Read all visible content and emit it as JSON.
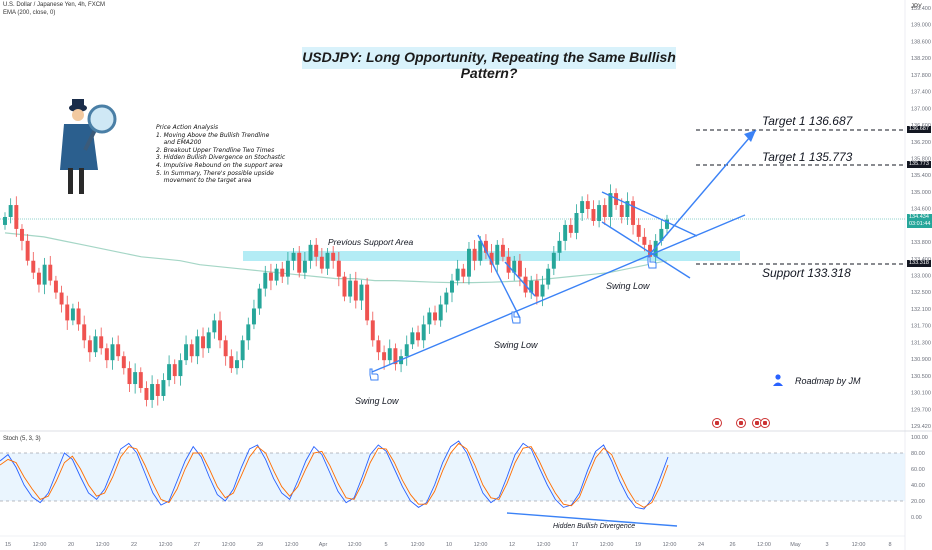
{
  "header": {
    "symbol_line": "U.S. Dollar / Japanese Yen, 4h, FXCM",
    "indicator_line": "EMA (200, close, 0)",
    "currency": "JPY"
  },
  "title": "USDJPY: Long Opportunity, Repeating the Same Bullish Pattern?",
  "analysis": {
    "heading": "Price Action Analysis",
    "lines": [
      "1. Moving Above the Bullish Trendline",
      "    and EMA200",
      "2. Breakout Upper Trendline Two Times",
      "3. Hidden Bullish Divergence on Stochastic",
      "4. Impulsive Rebound on the support area",
      "5. In Summary, There's possible upside",
      "    movement to the target area"
    ]
  },
  "annotations": {
    "target1": "Target 1  136.687",
    "target2": "Target 1  135.773",
    "support": "Support 133.318",
    "support_area": "Previous Support Area",
    "swing_low_1": "Swing Low",
    "swing_low_2": "Swing Low",
    "swing_low_3": "Swing Low",
    "roadmap": "Roadmap by JM",
    "divergence": "Hidden Bullish Divergence",
    "stoch_label": "Stoch (5, 3, 3)"
  },
  "price_badges": {
    "target1": "136.687",
    "target2": "135.773",
    "current": "134.434",
    "countdown": "03:01:44",
    "support": "133.318"
  },
  "colors": {
    "up": "#26a69a",
    "down": "#ef5350",
    "ema": "#a5d6c6",
    "trendline": "#3b82f6",
    "support_zone": "#b3ecf5",
    "stoch_k": "#2962ff",
    "stoch_d": "#ff6d00"
  },
  "chart_data": [
    {
      "type": "candlestick",
      "title": "U.S. Dollar / Japanese Yen, 4h, FXCM",
      "ylabel": "JPY",
      "ylim": [
        129.42,
        139.4
      ],
      "y_ticks": [
        "139.400",
        "139.000",
        "138.600",
        "138.200",
        "137.800",
        "137.400",
        "137.000",
        "136.600",
        "136.200",
        "135.800",
        "135.400",
        "135.000",
        "134.600",
        "134.200",
        "133.800",
        "133.400",
        "133.000",
        "132.500",
        "132.100",
        "131.700",
        "131.300",
        "130.900",
        "130.500",
        "130.100",
        "129.700",
        "129.420"
      ],
      "x_ticks": [
        "15",
        "12:00",
        "20",
        "12:00",
        "22",
        "12:00",
        "27",
        "12:00",
        "29",
        "12:00",
        "Apr",
        "12:00",
        "5",
        "12:00",
        "10",
        "12:00",
        "12",
        "12:00",
        "17",
        "12:00",
        "19",
        "12:00",
        "24",
        "26",
        "12:00",
        "May",
        "3",
        "12:00",
        "8"
      ],
      "ema_label": "EMA (200, close, 0)",
      "closes": [
        134.5,
        134.8,
        134.2,
        133.9,
        133.4,
        133.1,
        132.8,
        133.3,
        132.9,
        132.6,
        132.3,
        131.9,
        132.2,
        131.8,
        131.4,
        131.1,
        131.5,
        131.2,
        130.9,
        131.3,
        131.0,
        130.7,
        130.3,
        130.6,
        130.2,
        129.9,
        130.3,
        130.0,
        130.4,
        130.8,
        130.5,
        130.9,
        131.3,
        131.0,
        131.5,
        131.2,
        131.6,
        131.9,
        131.4,
        131.0,
        130.7,
        130.9,
        131.4,
        131.8,
        132.2,
        132.7,
        133.1,
        132.9,
        133.2,
        133.0,
        133.4,
        133.6,
        133.1,
        133.4,
        133.8,
        133.5,
        133.2,
        133.6,
        133.4,
        133.0,
        132.5,
        132.9,
        132.4,
        132.8,
        131.9,
        131.4,
        131.1,
        130.9,
        131.2,
        130.8,
        131.0,
        131.3,
        131.6,
        131.4,
        131.8,
        132.1,
        131.9,
        132.3,
        132.6,
        132.9,
        133.2,
        133.0,
        133.7,
        133.4,
        133.9,
        133.6,
        133.3,
        133.8,
        133.5,
        133.1,
        133.4,
        133.0,
        132.6,
        132.9,
        132.5,
        132.8,
        133.2,
        133.6,
        133.9,
        134.3,
        134.1,
        134.6,
        134.9,
        134.7,
        134.4,
        134.8,
        134.5,
        135.1,
        134.8,
        134.5,
        134.9,
        134.3,
        134.0,
        133.8,
        133.5,
        133.9,
        134.2,
        134.434
      ],
      "ema200": [
        134.1,
        134.05,
        134.0,
        133.9,
        133.8,
        133.7,
        133.6,
        133.5,
        133.45,
        133.4,
        133.3,
        133.25,
        133.2,
        133.15,
        133.1,
        133.05,
        133.0,
        132.95,
        132.95,
        132.9,
        132.9,
        132.88,
        132.86,
        132.85,
        132.85,
        132.86,
        132.88,
        132.9,
        132.95,
        133.0,
        133.05,
        133.1,
        133.2,
        133.3,
        133.4
      ],
      "levels": {
        "target_1": 136.687,
        "target_2": 135.773,
        "support": 133.318,
        "current": 134.434
      }
    },
    {
      "type": "line",
      "title": "Stoch (5, 3, 3)",
      "ylim": [
        0,
        100
      ],
      "y_ticks": [
        "100.00",
        "80.00",
        "60.00",
        "40.00",
        "20.00",
        "0.00"
      ],
      "series": [
        {
          "values": [
            70,
            78,
            62,
            40,
            25,
            18,
            30,
            55,
            80,
            72,
            50,
            30,
            22,
            35,
            60,
            85,
            92,
            80,
            55,
            30,
            15,
            20,
            45,
            70,
            88,
            75,
            50,
            28,
            20,
            35,
            62,
            85,
            90,
            72,
            48,
            30,
            22,
            45,
            70,
            88,
            78,
            55,
            32,
            18,
            24,
            50,
            78,
            90,
            82,
            60,
            38,
            20,
            12,
            18,
            40,
            68,
            88,
            95,
            80,
            55,
            30,
            18,
            25,
            50,
            78,
            92,
            85,
            62,
            40,
            22,
            12,
            15,
            30,
            58,
            82,
            90,
            70,
            45,
            25,
            12,
            10,
            22,
            48,
            75
          ]
        },
        {
          "values": [
            65,
            72,
            68,
            50,
            35,
            22,
            26,
            45,
            68,
            76,
            60,
            40,
            26,
            30,
            50,
            75,
            88,
            85,
            65,
            42,
            22,
            18,
            35,
            60,
            80,
            80,
            60,
            38,
            24,
            30,
            52,
            75,
            88,
            80,
            58,
            38,
            26,
            38,
            60,
            80,
            82,
            64,
            42,
            24,
            22,
            42,
            68,
            86,
            85,
            68,
            46,
            28,
            16,
            16,
            32,
            58,
            80,
            92,
            85,
            65,
            40,
            24,
            22,
            42,
            68,
            86,
            88,
            70,
            48,
            30,
            16,
            14,
            25,
            50,
            74,
            86,
            78,
            55,
            34,
            18,
            12,
            18,
            38,
            65
          ]
        }
      ],
      "hlines": [
        80,
        20
      ]
    }
  ]
}
